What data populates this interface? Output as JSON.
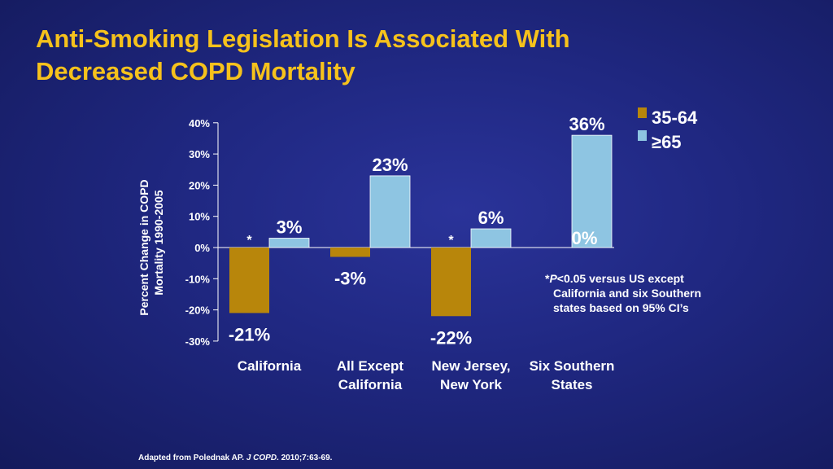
{
  "title_lines": [
    "Anti-Smoking Legislation Is Associated With",
    "Decreased COPD Mortality"
  ],
  "colors": {
    "series_35_64": "#b8860b",
    "series_65": "#8ec5e2",
    "title": "#f6c21c",
    "text": "#ffffff"
  },
  "chart_data": {
    "type": "bar",
    "ylabel_lines": [
      "Percent Change in COPD",
      "Mortality 1990-2005"
    ],
    "yticks": [
      "40%",
      "30%",
      "20%",
      "10%",
      "0%",
      "-10%",
      "-20%",
      "-30%"
    ],
    "ylim": [
      -30,
      40
    ],
    "legend_position": "top-right",
    "categories": [
      {
        "line1": "California",
        "line2": ""
      },
      {
        "line1": "All Except",
        "line2": "California"
      },
      {
        "line1": "New Jersey,",
        "line2": "New York"
      },
      {
        "line1": "Six Southern",
        "line2": "States"
      }
    ],
    "series": [
      {
        "name": "35-64",
        "values": [
          -21,
          -3,
          -22,
          0
        ],
        "labels": [
          "-21%",
          "-3%",
          "-22%",
          "0%"
        ],
        "star": [
          "*",
          "",
          "*",
          ""
        ]
      },
      {
        "name": "≥65",
        "values": [
          3,
          23,
          6,
          36
        ],
        "labels": [
          "3%",
          "23%",
          "6%",
          "36%"
        ]
      }
    ]
  },
  "footnote": {
    "mark": "*",
    "p": "P",
    "line1_rest": "<0.05 versus US except",
    "rest": "California and six Southern states based on 95% CI’s"
  },
  "source": {
    "before": "Adapted from Polednak AP. ",
    "journal": "J COPD",
    "after": ". 2010;7:63-69."
  }
}
